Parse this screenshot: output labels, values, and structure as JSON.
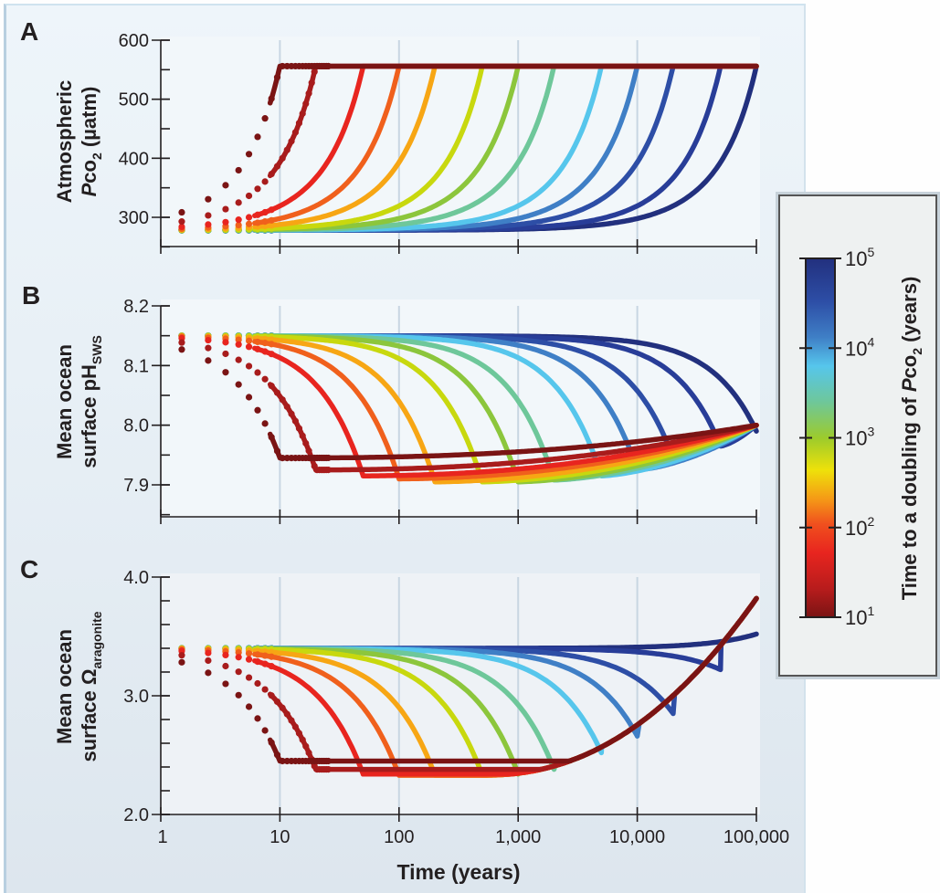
{
  "chart_data": [
    {
      "panel": "A",
      "type": "line",
      "ylabel_line1": "Atmospheric",
      "ylabel_line2_prefix": "P",
      "ylabel_line2_main": "co",
      "ylabel_line2_sub": "2",
      "ylabel_line2_suffix": " (µatm)",
      "ylim": [
        250,
        600
      ],
      "yticks": [
        300,
        400,
        500,
        600
      ],
      "xscale": "log",
      "xlim": [
        1,
        100000
      ],
      "baseline": 278,
      "plateau": 556
    },
    {
      "panel": "B",
      "type": "line",
      "ylabel_line1": "Mean ocean",
      "ylabel_line2_main": "surface pH",
      "ylabel_line2_sub": "SWS",
      "ylim": [
        7.85,
        8.2
      ],
      "yticks": [
        7.9,
        8.0,
        8.1,
        8.2
      ],
      "xscale": "log",
      "xlim": [
        1,
        100000
      ],
      "initial": 8.15,
      "minimum": 7.905,
      "end_value": 8.0
    },
    {
      "panel": "C",
      "type": "line",
      "ylabel_line1": "Mean ocean",
      "ylabel_line2_main": "surface Ω",
      "ylabel_line2_sub": "aragonite",
      "ylim": [
        2.0,
        4.0
      ],
      "yticks": [
        2.0,
        3.0,
        4.0
      ],
      "ytick_labels": [
        "2.0",
        "3.0",
        "4.0"
      ],
      "xscale": "log",
      "xlim": [
        1,
        100000
      ],
      "initial": 3.4,
      "minimum": 2.33,
      "end_value": 3.82
    }
  ],
  "xaxis": {
    "label": "Time (years)",
    "ticks": [
      1,
      10,
      100,
      1000,
      10000,
      100000
    ],
    "tick_labels": [
      "1",
      "10",
      "100",
      "1,000",
      "10,000",
      "100,000"
    ]
  },
  "doubling_times": [
    10,
    20,
    50,
    100,
    200,
    500,
    1000,
    2000,
    5000,
    10000,
    20000,
    50000,
    100000
  ],
  "series_colors": [
    "#7a1414",
    "#a81c1c",
    "#e8251f",
    "#f0601c",
    "#f7a614",
    "#c8d80e",
    "#8cc63c",
    "#6ec79a",
    "#56c6ec",
    "#3f7fc6",
    "#2d4ea6",
    "#283d98",
    "#22307e"
  ],
  "panel_b_minima": [
    7.945,
    7.925,
    7.915,
    7.91,
    7.905,
    7.905,
    7.905,
    7.908,
    7.915,
    7.925,
    7.945,
    7.965,
    7.99
  ],
  "panel_c_minima": [
    2.45,
    2.38,
    2.34,
    2.33,
    2.33,
    2.33,
    2.34,
    2.38,
    2.52,
    2.66,
    2.85,
    3.22,
    3.52
  ],
  "panel_labels": [
    "A",
    "B",
    "C"
  ],
  "colorbar": {
    "label_prefix": "Time to a doubling of ",
    "label_italic": "P",
    "label_main": "co",
    "label_sub": "2",
    "label_suffix": " (years)",
    "range": [
      10,
      100000
    ],
    "scale": "log",
    "ticks": [
      {
        "base": "10",
        "exp": "1",
        "value": 10
      },
      {
        "base": "10",
        "exp": "2",
        "value": 100
      },
      {
        "base": "10",
        "exp": "3",
        "value": 1000
      },
      {
        "base": "10",
        "exp": "4",
        "value": 10000
      },
      {
        "base": "10",
        "exp": "5",
        "value": 100000
      }
    ],
    "stops": [
      {
        "v": 0.0,
        "c": "#7a1414"
      },
      {
        "v": 0.08,
        "c": "#b81c1c"
      },
      {
        "v": 0.18,
        "c": "#e8251f"
      },
      {
        "v": 0.26,
        "c": "#f0501e"
      },
      {
        "v": 0.33,
        "c": "#f59a16"
      },
      {
        "v": 0.41,
        "c": "#eee10a"
      },
      {
        "v": 0.5,
        "c": "#9ccb2c"
      },
      {
        "v": 0.6,
        "c": "#6ec79a"
      },
      {
        "v": 0.7,
        "c": "#56c6ec"
      },
      {
        "v": 0.78,
        "c": "#3f7fc6"
      },
      {
        "v": 0.88,
        "c": "#2d4ea6"
      },
      {
        "v": 1.0,
        "c": "#22307e"
      }
    ]
  }
}
